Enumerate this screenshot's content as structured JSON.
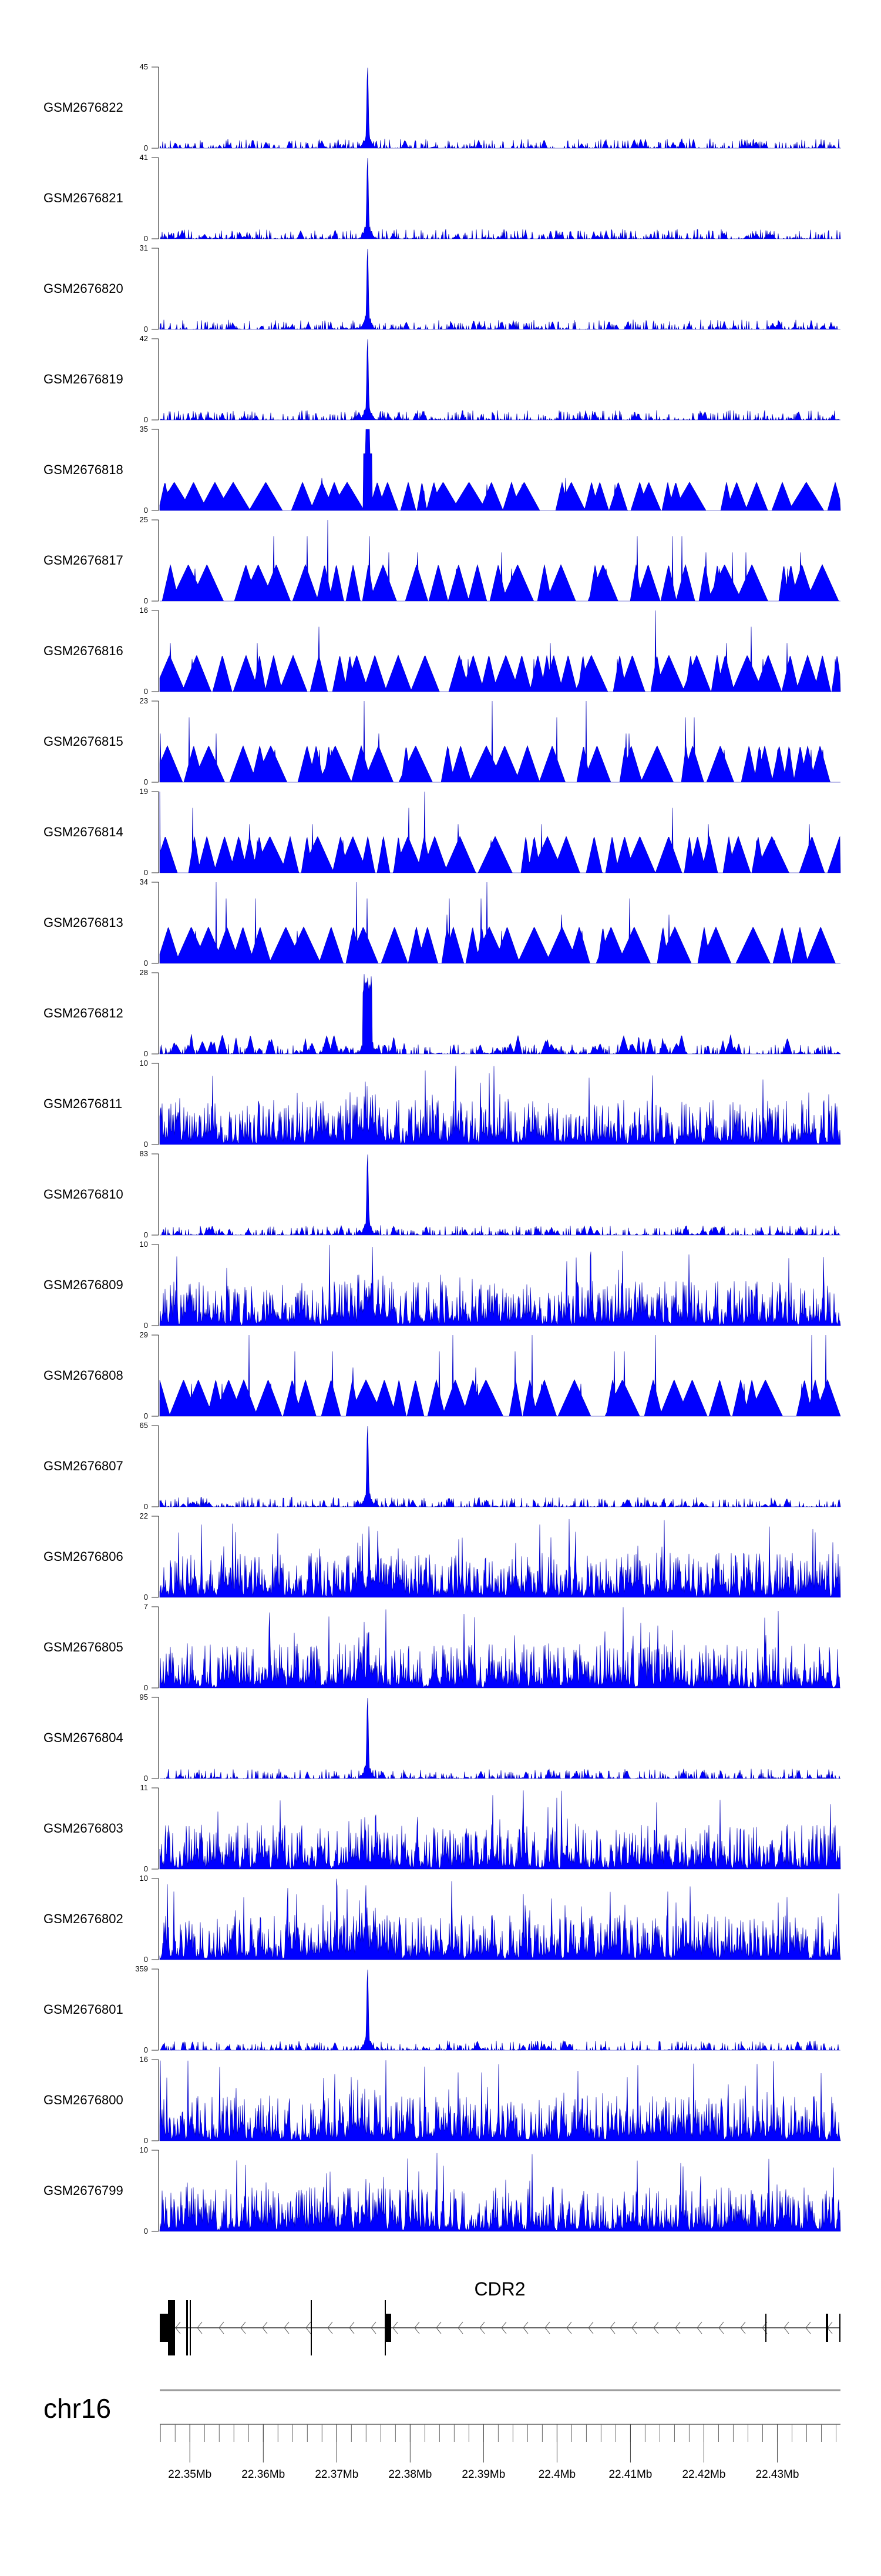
{
  "chart_data": {
    "type": "area",
    "title": "",
    "chromosome": "chr16",
    "xlim_mb": [
      22.3459,
      22.4386
    ],
    "x_ticks": [
      "22.35Mb",
      "22.36Mb",
      "22.37Mb",
      "22.38Mb",
      "22.39Mb",
      "22.4Mb",
      "22.41Mb",
      "22.42Mb",
      "22.43Mb"
    ],
    "x_tick_values": [
      22.35,
      22.36,
      22.37,
      22.38,
      22.39,
      22.4,
      22.41,
      22.42,
      22.43
    ],
    "minor_tick_step_mb": 0.002,
    "series_color": "#0000ff",
    "main_peak_position_mb": 22.3742,
    "tracks": [
      {
        "name": "GSM2676822",
        "ymin": 0,
        "ymax": 45,
        "profile": "peak"
      },
      {
        "name": "GSM2676821",
        "ymin": 0,
        "ymax": 41,
        "profile": "peak"
      },
      {
        "name": "GSM2676820",
        "ymin": 0,
        "ymax": 31,
        "profile": "peak"
      },
      {
        "name": "GSM2676819",
        "ymin": 0,
        "ymax": 42,
        "profile": "peak"
      },
      {
        "name": "GSM2676818",
        "ymin": 0,
        "ymax": 35,
        "profile": "peak-sparse"
      },
      {
        "name": "GSM2676817",
        "ymin": 0,
        "ymax": 25,
        "profile": "sparse"
      },
      {
        "name": "GSM2676816",
        "ymin": 0,
        "ymax": 16,
        "profile": "sparse"
      },
      {
        "name": "GSM2676815",
        "ymin": 0,
        "ymax": 23,
        "profile": "sparse"
      },
      {
        "name": "GSM2676814",
        "ymin": 0,
        "ymax": 19,
        "profile": "sparse"
      },
      {
        "name": "GSM2676813",
        "ymin": 0,
        "ymax": 34,
        "profile": "sparse"
      },
      {
        "name": "GSM2676812",
        "ymin": 0,
        "ymax": 28,
        "profile": "broad-peak"
      },
      {
        "name": "GSM2676811",
        "ymin": 0,
        "ymax": 10,
        "profile": "dense"
      },
      {
        "name": "GSM2676810",
        "ymin": 0,
        "ymax": 83,
        "profile": "peak"
      },
      {
        "name": "GSM2676809",
        "ymin": 0,
        "ymax": 10,
        "profile": "dense"
      },
      {
        "name": "GSM2676808",
        "ymin": 0,
        "ymax": 29,
        "profile": "sparse"
      },
      {
        "name": "GSM2676807",
        "ymin": 0,
        "ymax": 65,
        "profile": "peak"
      },
      {
        "name": "GSM2676806",
        "ymin": 0,
        "ymax": 22,
        "profile": "dense"
      },
      {
        "name": "GSM2676805",
        "ymin": 0,
        "ymax": 7,
        "profile": "dense"
      },
      {
        "name": "GSM2676804",
        "ymin": 0,
        "ymax": 95,
        "profile": "peak"
      },
      {
        "name": "GSM2676803",
        "ymin": 0,
        "ymax": 11,
        "profile": "dense"
      },
      {
        "name": "GSM2676802",
        "ymin": 0,
        "ymax": 10,
        "profile": "dense"
      },
      {
        "name": "GSM2676801",
        "ymin": 0,
        "ymax": 359,
        "profile": "peak"
      },
      {
        "name": "GSM2676800",
        "ymin": 0,
        "ymax": 16,
        "profile": "dense"
      },
      {
        "name": "GSM2676799",
        "ymin": 0,
        "ymax": 10,
        "profile": "dense"
      }
    ],
    "gene": {
      "name": "CDR2",
      "strand": "-",
      "exons_mb": [
        22.346,
        22.3478,
        22.3483,
        22.3638,
        22.3732,
        22.3737,
        22.4213,
        22.429,
        22.4383
      ]
    }
  }
}
